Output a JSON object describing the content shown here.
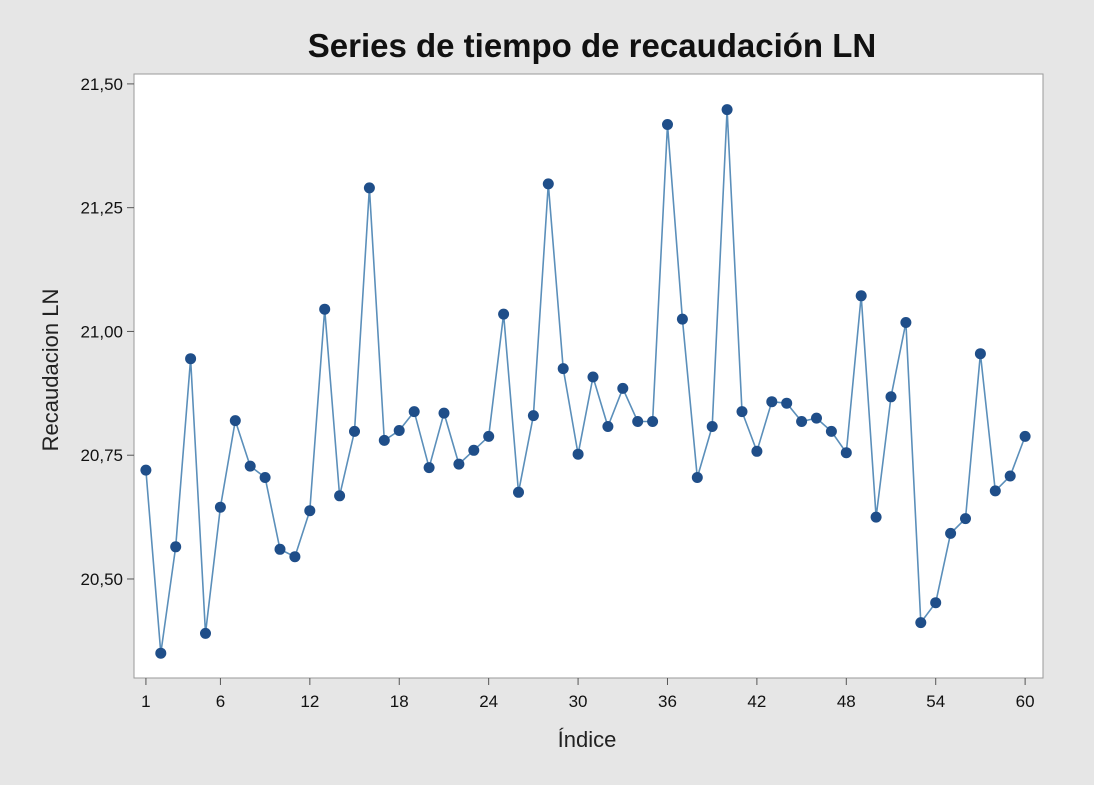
{
  "chart_data": {
    "type": "line",
    "title": "Series de tiempo de recaudación LN",
    "xlabel": "Índice",
    "ylabel": "Recaudacion LN",
    "xlim": [
      0.2,
      61.2
    ],
    "ylim": [
      20.3,
      21.52
    ],
    "xticks": [
      1,
      6,
      12,
      18,
      24,
      30,
      36,
      42,
      48,
      54,
      60
    ],
    "xtick_labels": [
      "1",
      "6",
      "12",
      "18",
      "24",
      "30",
      "36",
      "42",
      "48",
      "54",
      "60"
    ],
    "yticks": [
      20.5,
      20.75,
      21.0,
      21.25,
      21.5
    ],
    "ytick_labels": [
      "20,50",
      "20,75",
      "21,00",
      "21,25",
      "21,50"
    ],
    "grid": false,
    "series": [
      {
        "markers": true,
        "line_color": "#5b8fba",
        "marker_color": "#1f4e89",
        "x": [
          1,
          2,
          3,
          4,
          5,
          6,
          7,
          8,
          9,
          10,
          11,
          12,
          13,
          14,
          15,
          16,
          17,
          18,
          19,
          20,
          21,
          22,
          23,
          24,
          25,
          26,
          27,
          28,
          29,
          30,
          31,
          32,
          33,
          34,
          35,
          36,
          37,
          38,
          39,
          40,
          41,
          42,
          43,
          44,
          45,
          46,
          47,
          48,
          49,
          50,
          51,
          52,
          53,
          54,
          55,
          56,
          57,
          58,
          59,
          60
        ],
        "y": [
          20.72,
          20.35,
          20.565,
          20.945,
          20.39,
          20.645,
          20.82,
          20.728,
          20.705,
          20.56,
          20.545,
          20.638,
          21.045,
          20.668,
          20.798,
          21.29,
          20.78,
          20.8,
          20.838,
          20.725,
          20.835,
          20.732,
          20.76,
          20.788,
          21.035,
          20.675,
          20.83,
          21.298,
          20.925,
          20.752,
          20.908,
          20.808,
          20.885,
          20.818,
          20.818,
          21.418,
          21.025,
          20.705,
          20.808,
          21.448,
          20.838,
          20.758,
          20.858,
          20.855,
          20.818,
          20.825,
          20.798,
          20.755,
          21.072,
          20.625,
          20.868,
          21.018,
          20.412,
          20.452,
          20.592,
          20.622,
          20.955,
          20.678,
          20.708,
          20.788
        ]
      }
    ]
  }
}
